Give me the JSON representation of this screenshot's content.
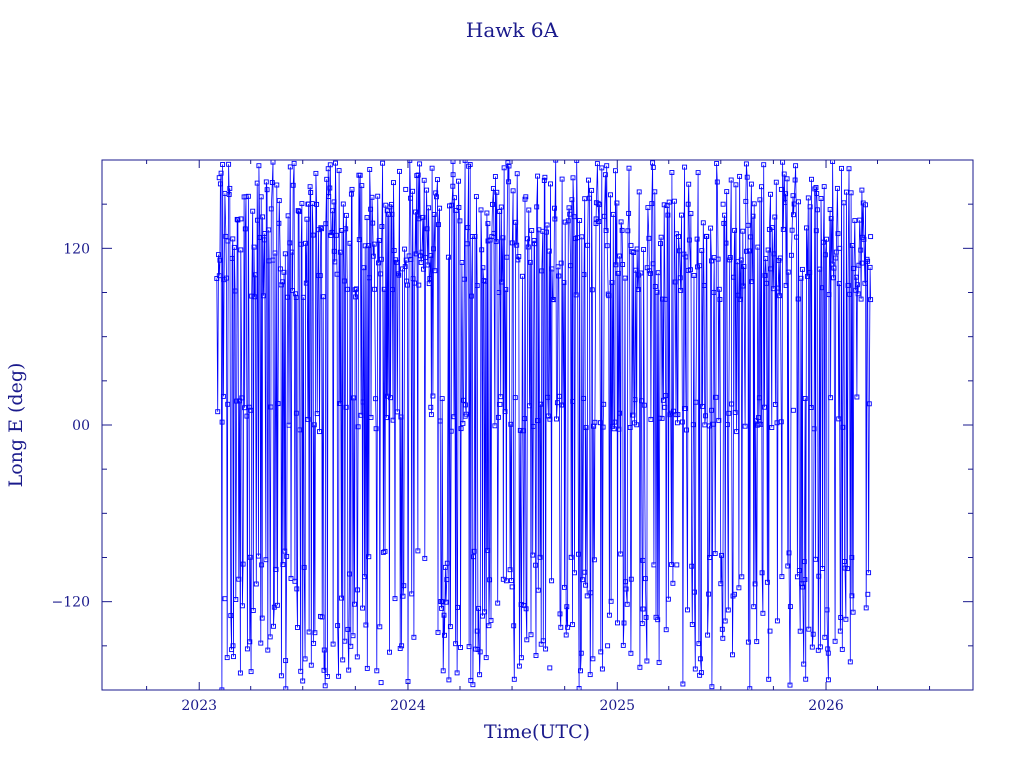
{
  "chart_data": {
    "type": "line",
    "title": "Hawk 6A",
    "xlabel": "Time(UTC)",
    "ylabel": "Long E (deg)",
    "x_ticks": [
      "2023",
      "2024",
      "2025",
      "2026"
    ],
    "y_ticks": [
      "120",
      "00",
      "−120"
    ],
    "xlim": [
      "2022-07-15",
      "2026-09-15"
    ],
    "ylim": [
      -180,
      180
    ],
    "grid": false,
    "data_range": [
      "2023-02-01",
      "2026-03-20"
    ],
    "series": [
      {
        "color": "#0000ff",
        "marker": "square",
        "description_clusters_deg": [
          [
            85,
            180
          ],
          [
            -5,
            20
          ],
          [
            -180,
            -85
          ]
        ],
        "sample_points": [
          [
            "2023-02-05",
            168
          ],
          [
            "2023-02-10",
            2
          ],
          [
            "2023-02-15",
            -118
          ],
          [
            "2023-02-20",
            125
          ],
          [
            "2023-03-01",
            -150
          ],
          [
            "2023-03-15",
            140
          ],
          [
            "2023-04-01",
            10
          ],
          [
            "2023-04-20",
            -95
          ],
          [
            "2023-05-10",
            112
          ],
          [
            "2023-06-01",
            -160
          ],
          [
            "2023-06-20",
            8
          ],
          [
            "2023-07-10",
            150
          ],
          [
            "2023-08-01",
            -130
          ],
          [
            "2023-08-25",
            118
          ],
          [
            "2023-09-15",
            12
          ],
          [
            "2023-10-05",
            -112
          ],
          [
            "2023-10-25",
            100
          ],
          [
            "2023-11-15",
            -175
          ],
          [
            "2023-12-05",
            92
          ],
          [
            "2023-12-28",
            160
          ],
          [
            "2024-01-20",
            95
          ],
          [
            "2024-02-10",
            12
          ],
          [
            "2024-03-01",
            -120
          ],
          [
            "2024-03-20",
            170
          ],
          [
            "2024-04-10",
            6
          ],
          [
            "2024-05-01",
            -140
          ],
          [
            "2024-05-20",
            125
          ],
          [
            "2024-06-10",
            14
          ],
          [
            "2024-07-01",
            -110
          ],
          [
            "2024-07-25",
            155
          ],
          [
            "2024-08-15",
            3
          ],
          [
            "2024-09-05",
            -165
          ],
          [
            "2024-09-25",
            110
          ],
          [
            "2024-10-15",
            16
          ],
          [
            "2024-11-05",
            -100
          ],
          [
            "2024-11-25",
            140
          ],
          [
            "2024-12-15",
            -150
          ],
          [
            "2025-01-05",
            8
          ],
          [
            "2025-01-25",
            122
          ],
          [
            "2025-02-15",
            -125
          ],
          [
            "2025-03-05",
            175
          ],
          [
            "2025-03-25",
            12
          ],
          [
            "2025-04-15",
            -95
          ],
          [
            "2025-05-05",
            105
          ],
          [
            "2025-05-25",
            -170
          ],
          [
            "2025-06-15",
            10
          ],
          [
            "2025-07-05",
            150
          ],
          [
            "2025-07-25",
            -115
          ],
          [
            "2025-08-15",
            118
          ],
          [
            "2025-09-05",
            5
          ],
          [
            "2025-09-25",
            -140
          ],
          [
            "2025-10-15",
            160
          ],
          [
            "2025-11-05",
            10
          ],
          [
            "2025-11-25",
            -105
          ],
          [
            "2025-12-15",
            132
          ],
          [
            "2026-01-05",
            -155
          ],
          [
            "2026-01-25",
            120
          ],
          [
            "2026-02-15",
            -90
          ],
          [
            "2026-03-05",
            110
          ],
          [
            "2026-03-15",
            -115
          ],
          [
            "2026-03-20",
            128
          ]
        ]
      }
    ]
  }
}
